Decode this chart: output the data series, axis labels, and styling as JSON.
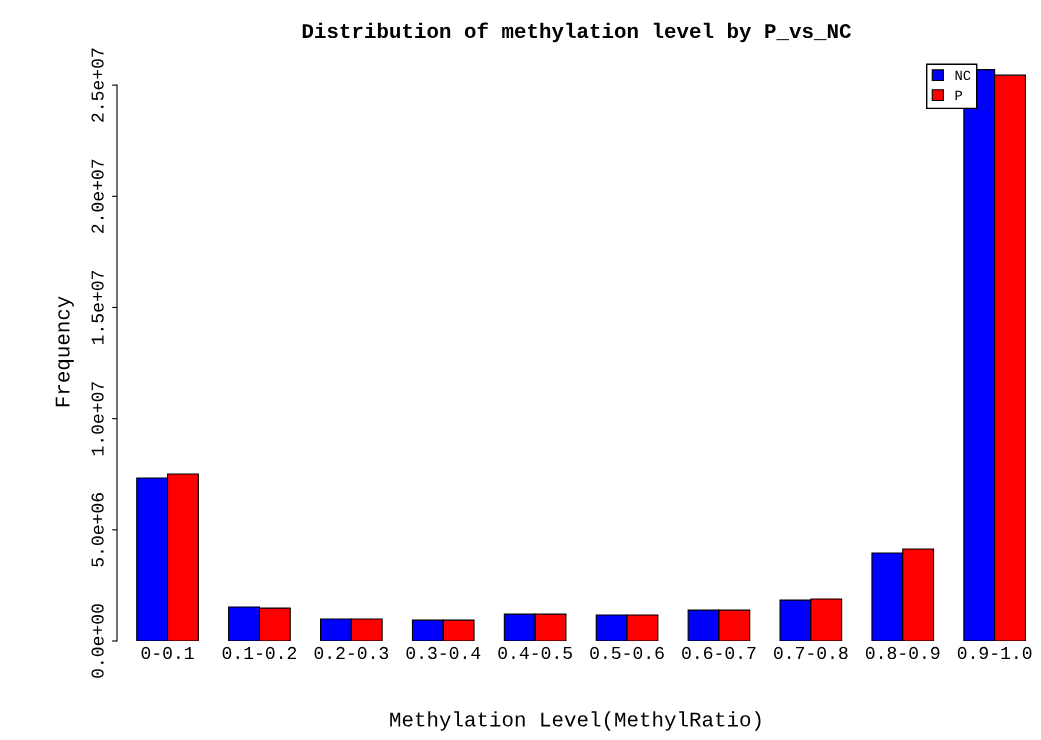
{
  "chart_data": {
    "type": "bar",
    "title": "Distribution of methylation level by P_vs_NC",
    "xlabel": "Methylation Level(MethylRatio)",
    "ylabel": "Frequency",
    "categories": [
      "0-0.1",
      "0.1-0.2",
      "0.2-0.3",
      "0.3-0.4",
      "0.4-0.5",
      "0.5-0.6",
      "0.6-0.7",
      "0.7-0.8",
      "0.8-0.9",
      "0.9-1.0"
    ],
    "series": [
      {
        "name": "NC",
        "color": "#0000ff",
        "values": [
          7330000,
          1530000,
          990000,
          940000,
          1210000,
          1170000,
          1390000,
          1840000,
          3960000,
          25700000
        ]
      },
      {
        "name": "P",
        "color": "#ff0000",
        "values": [
          7510000,
          1480000,
          990000,
          940000,
          1210000,
          1170000,
          1390000,
          1890000,
          4140000,
          25450000
        ]
      }
    ],
    "ylim": [
      0,
      26000000
    ],
    "yticks": [
      {
        "value": 0,
        "label": "0.0e+00"
      },
      {
        "value": 5000000,
        "label": "5.0e+06"
      },
      {
        "value": 10000000,
        "label": "1.0e+07"
      },
      {
        "value": 15000000,
        "label": "1.5e+07"
      },
      {
        "value": 20000000,
        "label": "2.0e+07"
      },
      {
        "value": 25000000,
        "label": "2.5e+07"
      }
    ],
    "grid": false,
    "legend": "top right"
  }
}
